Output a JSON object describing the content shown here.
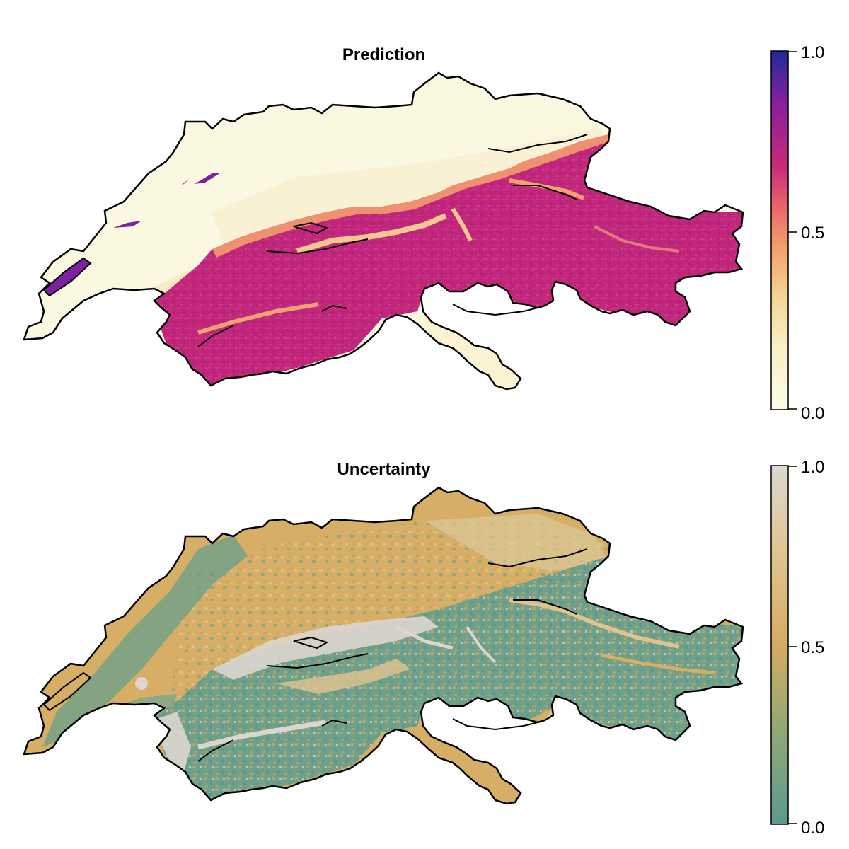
{
  "panels": [
    {
      "title": "Prediction",
      "colorbar": {
        "ticks": [
          "0.0",
          "0.5",
          "1.0"
        ],
        "range": [
          0,
          1
        ],
        "colors": [
          "#fcfbe9",
          "#f7e3a4",
          "#f5a56f",
          "#ea6b6b",
          "#c2227a",
          "#7a1ea0",
          "#1f2b9c"
        ]
      }
    },
    {
      "title": "Uncertainty",
      "colorbar": {
        "ticks": [
          "0.0",
          "0.5",
          "1.0"
        ],
        "range": [
          0,
          1
        ],
        "colors": [
          "#5c9a8e",
          "#8aa878",
          "#d6ac62",
          "#e0c289",
          "#dcd6cf"
        ]
      }
    }
  ]
}
